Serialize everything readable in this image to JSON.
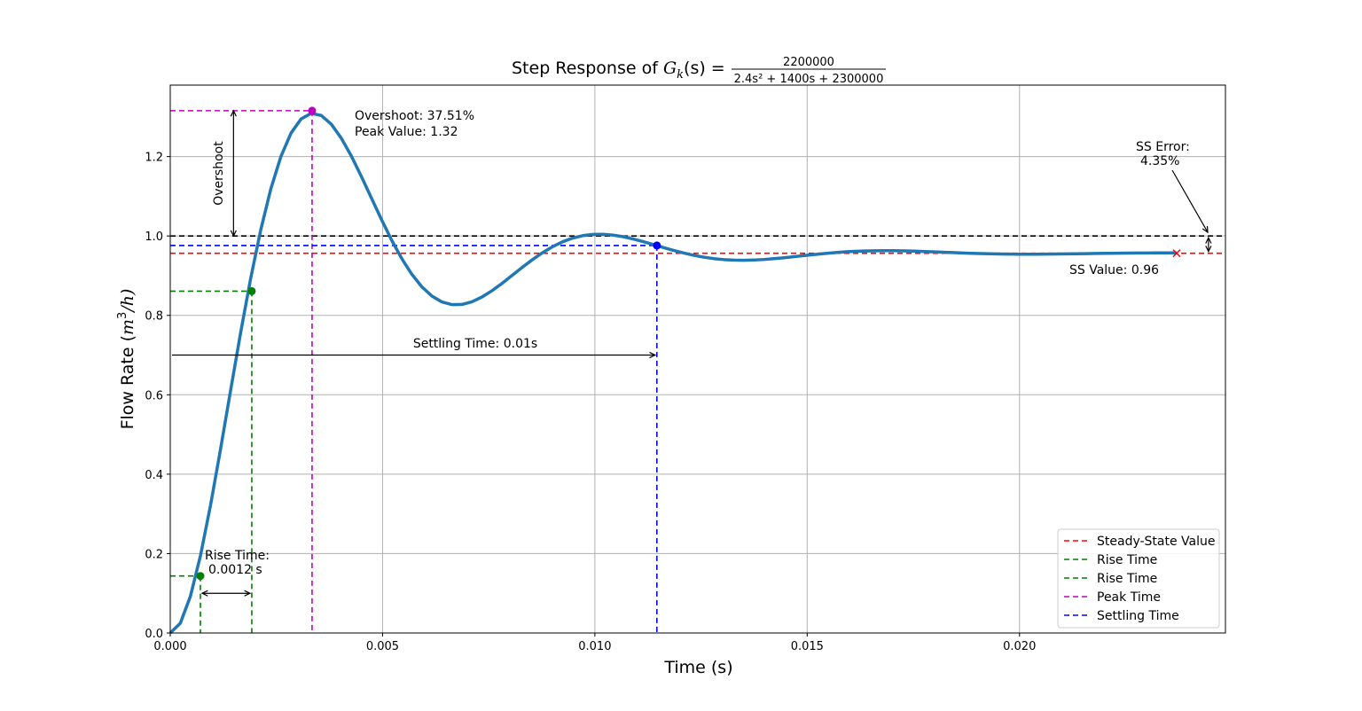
{
  "chart_data": {
    "type": "line",
    "title_prefix": "Step Response of ",
    "title_func": "G",
    "title_sub": "k",
    "title_arg": "(s) = ",
    "title_num": "2200000",
    "title_den": "2.4s² + 1400s + 2300000",
    "xlabel": "Time (s)",
    "ylabel_text": "Flow Rate (",
    "ylabel_unit_m": "m",
    "ylabel_unit_exp": "3",
    "ylabel_unit_rest": "/h)",
    "xlim": [
      0,
      0.02485
    ],
    "ylim": [
      0,
      1.38
    ],
    "x_ticks": [
      0,
      0.005,
      0.01,
      0.015,
      0.02
    ],
    "x_tick_labels": [
      "0.000",
      "0.005",
      "0.010",
      "0.015",
      "0.020"
    ],
    "y_ticks": [
      0,
      0.2,
      0.4,
      0.6,
      0.8,
      1.0,
      1.2
    ],
    "y_tick_labels": [
      "0.0",
      "0.2",
      "0.4",
      "0.6",
      "0.8",
      "1.0",
      "1.2"
    ],
    "grid": true,
    "series": [
      {
        "color": "#1f77b4",
        "model": {
          "K": 0.9565,
          "zeta": 0.3026,
          "wn": 978.95,
          "t_end": 0.0237
        }
      }
    ],
    "reference_value": 1.0,
    "steady_state_value": 0.9565,
    "rise_time_start": {
      "t": 0.00071,
      "y": 0.1435
    },
    "rise_time_end": {
      "t": 0.00192,
      "y": 0.861
    },
    "peak": {
      "t": 0.00334,
      "y": 1.3155
    },
    "settling": {
      "t": 0.01146,
      "y": 0.976
    },
    "ss_marker_t": 0.0237,
    "ss_error_arrow_x": 0.02445,
    "annotations": {
      "overshoot_line1": "Overshoot: 37.51%",
      "overshoot_line2": "Peak Value: 1.32",
      "overshoot_vertical": "Overshoot",
      "ss_error_line1": "SS Error:",
      "ss_error_line2": "4.35%",
      "ss_value": "SS Value: 0.96",
      "settling_time": "Settling Time: 0.01s",
      "rise_time_line1": "Rise  Time:",
      "rise_time_line2": "0.0012  s"
    },
    "legend_position": "lower right",
    "legend": [
      {
        "label": "Steady-State Value",
        "color": "#ff0000"
      },
      {
        "label": "Rise Time",
        "color": "#008000"
      },
      {
        "label": "Rise Time",
        "color": "#008000"
      },
      {
        "label": "Peak Time",
        "color": "#c000c0"
      },
      {
        "label": "Settling Time",
        "color": "#0000ff"
      }
    ],
    "colors": {
      "reference": "#000000",
      "steady_state": "#ff0000",
      "rise": "#008000",
      "peak": "#c000c0",
      "settling": "#0000ff",
      "grid": "#b0b0b0"
    }
  }
}
